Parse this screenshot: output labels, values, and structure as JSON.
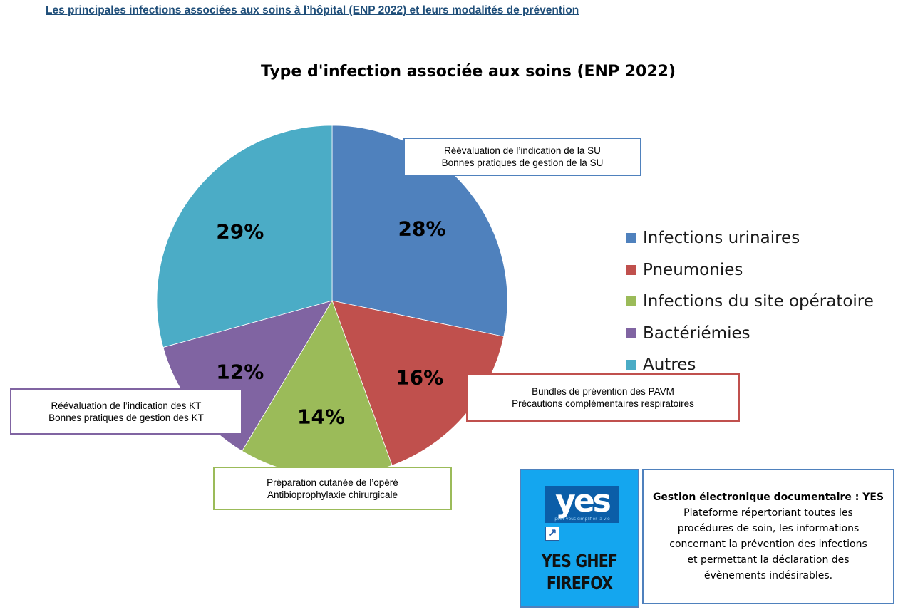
{
  "header": {
    "link_text": "Les principales infections associées aux soins à l’hôpital (ENP 2022) et leurs modalités de prévention"
  },
  "chart_data": {
    "type": "pie",
    "title": "Type d'infection associée aux soins (ENP 2022)",
    "legend_position": "right",
    "slices": [
      {
        "label": "Infections urinaires",
        "value": 28,
        "value_label": "28%",
        "color": "#4f81bd"
      },
      {
        "label": "Pneumonies",
        "value": 16,
        "value_label": "16%",
        "color": "#c0504d"
      },
      {
        "label": "Infections du site opératoire",
        "value": 14,
        "value_label": "14%",
        "color": "#9bbb59"
      },
      {
        "label": "Bactériémies",
        "value": 12,
        "value_label": "12%",
        "color": "#8064a2"
      },
      {
        "label": "Autres",
        "value": 29,
        "value_label": "29%",
        "color": "#4bacc6"
      }
    ]
  },
  "callouts": {
    "urinary": {
      "line1": "Réévaluation  de l’indication de la SU",
      "line2": "Bonnes pratiques de gestion de la SU",
      "border_color": "#4f81bd"
    },
    "pneumonia": {
      "line1": "Bundles de prévention des PAVM",
      "line2": "Précautions complémentaires respiratoires",
      "border_color": "#c0504d"
    },
    "surgical_site": {
      "line1": "Préparation cutanée de l’opéré",
      "line2": "Antibioprophylaxie chirurgicale",
      "border_color": "#9bbb59"
    },
    "bacteremia": {
      "line1": "Réévaluation  de l’indication des KT",
      "line2": "Bonnes pratiques de gestion des KT",
      "border_color": "#8064a2"
    }
  },
  "yes_shortcut": {
    "logo_text": "yes",
    "logo_subtext": "pour vous simplifier la vie",
    "caption_line1": "YES GHEF",
    "caption_line2": "FIREFOX",
    "icon": "shortcut-arrow-icon"
  },
  "ged_info": {
    "title": "Gestion électronique documentaire : YES",
    "line1": "Plateforme répertoriant toutes les",
    "line2": "procédures de soin, les informations",
    "line3": "concernant la prévention des infections",
    "line4": "et permettant la déclaration des",
    "line5": "évènements indésirables."
  }
}
